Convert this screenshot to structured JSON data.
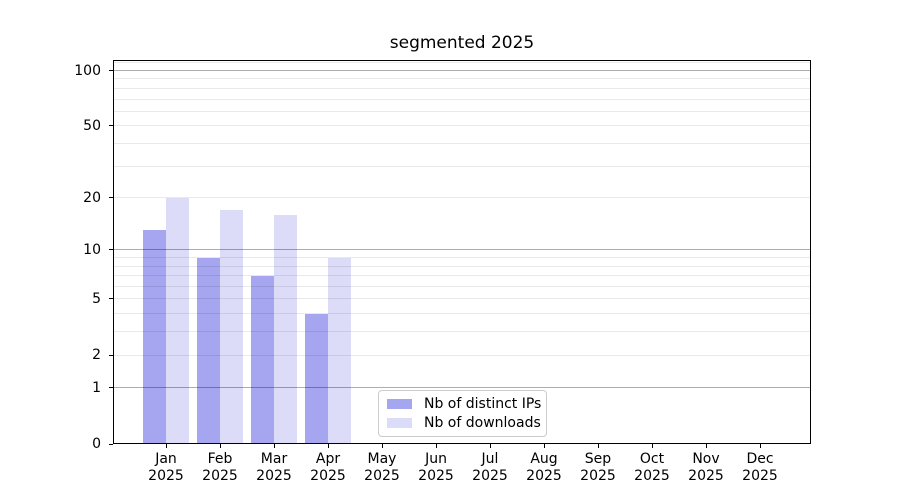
{
  "chart_data": {
    "type": "bar",
    "title": "segmented 2025",
    "categories": [
      "Jan",
      "Feb",
      "Mar",
      "Apr",
      "May",
      "Jun",
      "Jul",
      "Aug",
      "Sep",
      "Oct",
      "Nov",
      "Dec"
    ],
    "year_label": "2025",
    "series": [
      {
        "name": "Nb of distinct IPs",
        "color": "#a5a5f0",
        "values": [
          13,
          9,
          7,
          4,
          0,
          0,
          0,
          0,
          0,
          0,
          0,
          0
        ]
      },
      {
        "name": "Nb of downloads",
        "color": "#dcdcf8",
        "values": [
          20,
          17,
          16,
          9,
          0,
          0,
          0,
          0,
          0,
          0,
          0,
          0
        ]
      }
    ],
    "xlabel": "",
    "ylabel": "",
    "yscale": "log1p",
    "ylim": [
      0,
      114
    ],
    "y_ticks": [
      0,
      1,
      2,
      5,
      10,
      20,
      50,
      100
    ],
    "y_major_grid": [
      1,
      10,
      100
    ],
    "y_minor_grid": [
      2,
      3,
      4,
      5,
      6,
      7,
      8,
      9,
      20,
      30,
      40,
      50,
      60,
      70,
      80,
      90,
      110
    ],
    "grid": "on",
    "legend_position": "lower center"
  }
}
